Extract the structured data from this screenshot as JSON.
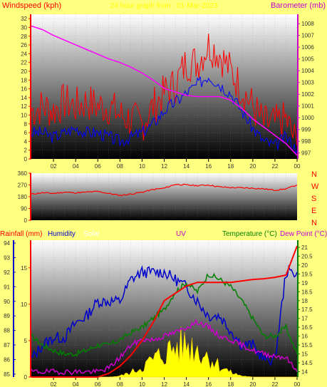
{
  "colors": {
    "background": "#ffff80",
    "wind": "#ff0000",
    "gust": "#ff0000",
    "wind_avg": "#0000ff",
    "baro": "#ff00ff",
    "direction": "#ff0000",
    "rain": "#ff0000",
    "humidity": "#0000cc",
    "solar": "#ffff00",
    "uv": "#cc00cc",
    "temperature": "#008000",
    "dewpoint": "#cc00cc",
    "axis_left_top": "#ff0000",
    "axis_right_top": "#cc00cc",
    "axis_bottom_left": "#0000ff"
  },
  "header": {
    "left_title": "Windspeed (kph)",
    "center_title": "24 hour graph from : 01-Mar-2023",
    "right_title": "Barometer (mb)"
  },
  "bottom_header": {
    "rainfall": "Rainfall (mm)",
    "humidity": "Humidity",
    "solar": "Solar",
    "uv": "UV",
    "temperature": "Temperature (°C)",
    "dewpoint": "Dew Point (°C)"
  },
  "compass": [
    "N",
    "W",
    "S",
    "E",
    "N"
  ],
  "x_ticks": [
    "02",
    "04",
    "06",
    "08",
    "10",
    "12",
    "14",
    "16",
    "18",
    "20",
    "22",
    "00"
  ],
  "chart_data": [
    {
      "type": "line",
      "name": "wind-chart",
      "x_hours": [
        0,
        1,
        2,
        3,
        4,
        5,
        6,
        7,
        8,
        9,
        10,
        11,
        12,
        13,
        14,
        15,
        16,
        17,
        18,
        19,
        20,
        21,
        22,
        23,
        24
      ],
      "series": [
        {
          "key": "gust",
          "values": [
            11,
            12,
            11,
            13,
            12,
            13,
            12,
            12,
            10,
            9,
            8,
            12,
            15,
            17,
            22,
            22,
            26,
            24,
            20,
            16,
            12,
            8,
            8,
            9,
            3
          ]
        },
        {
          "key": "wind_avg",
          "values": [
            6,
            6,
            5,
            6,
            7,
            6,
            6,
            5,
            4,
            5,
            6,
            8,
            11,
            13,
            15,
            17,
            19,
            17,
            15,
            11,
            7,
            4,
            3,
            5,
            2
          ]
        },
        {
          "key": "baro",
          "values": [
            1007.8,
            1007.5,
            1007.0,
            1006.6,
            1006.2,
            1005.8,
            1005.4,
            1005.0,
            1004.7,
            1004.3,
            1003.8,
            1003.2,
            1002.5,
            1002.2,
            1001.9,
            1001.8,
            1001.8,
            1001.8,
            1001.5,
            1000.8,
            999.9,
            999.2,
            998.5,
            997.8,
            996.8
          ]
        }
      ],
      "y_left": {
        "label": "Windspeed (kph)",
        "min": 0,
        "max": 33,
        "ticks": [
          0,
          2,
          4,
          6,
          8,
          10,
          12,
          14,
          16,
          18,
          20,
          22,
          24,
          26,
          28,
          30,
          32
        ]
      },
      "y_right": {
        "label": "Barometer (mb)",
        "min": 996.5,
        "max": 1008.8,
        "ticks": [
          997,
          998,
          999,
          1000,
          1001,
          1002,
          1003,
          1004,
          1005,
          1006,
          1007,
          1008
        ]
      }
    },
    {
      "type": "line",
      "name": "direction-chart",
      "x_hours": [
        0,
        1,
        2,
        3,
        4,
        5,
        6,
        7,
        8,
        9,
        10,
        11,
        12,
        13,
        14,
        15,
        16,
        17,
        18,
        19,
        20,
        21,
        22,
        23,
        24
      ],
      "series": [
        {
          "key": "direction",
          "values": [
            200,
            210,
            205,
            215,
            210,
            215,
            220,
            205,
            190,
            200,
            215,
            235,
            245,
            275,
            270,
            265,
            270,
            255,
            250,
            248,
            245,
            240,
            230,
            240,
            270
          ]
        }
      ],
      "y_left": {
        "min": 0,
        "max": 360,
        "ticks": [
          0,
          90,
          180,
          270,
          360
        ],
        "tick_labels": [
          "0",
          "90",
          "180",
          "270",
          "360"
        ],
        "extra_ticks": [
          30,
          60,
          120,
          150,
          210,
          240,
          300,
          330
        ]
      }
    },
    {
      "type": "line",
      "name": "rain-humidity-temp-chart",
      "x_hours": [
        0,
        1,
        2,
        3,
        4,
        5,
        6,
        7,
        8,
        9,
        10,
        11,
        12,
        13,
        14,
        15,
        16,
        17,
        18,
        19,
        20,
        21,
        22,
        23,
        24
      ],
      "series": [
        {
          "key": "humidity",
          "values": [
            86,
            87,
            87.5,
            87.5,
            88.5,
            89,
            90,
            90,
            90,
            91.5,
            92,
            92,
            92,
            91.5,
            91,
            90,
            89,
            89,
            88,
            87,
            87,
            86,
            86,
            92,
            92
          ]
        },
        {
          "key": "rain",
          "values": [
            0,
            0,
            0,
            0,
            0,
            0,
            0,
            0.5,
            1.5,
            3,
            5,
            7.5,
            10.5,
            11.5,
            12.5,
            13,
            13,
            13,
            13,
            13.2,
            13.4,
            13.5,
            13.7,
            14,
            18
          ]
        },
        {
          "key": "temperature",
          "values": [
            16,
            15.5,
            15.2,
            15,
            15,
            15.2,
            15.5,
            15.5,
            15.8,
            16.2,
            16.5,
            17,
            17.5,
            18.5,
            19,
            18.5,
            19.5,
            19.2,
            18.8,
            18,
            17,
            16,
            16,
            16.5,
            15
          ]
        },
        {
          "key": "dewpoint",
          "values": [
            14,
            14,
            14,
            14,
            14,
            14,
            14,
            14.2,
            14.8,
            15.5,
            15.8,
            15.8,
            16,
            16.2,
            16.5,
            16.8,
            16.5,
            16,
            15.8,
            15.5,
            15.2,
            15,
            14.9,
            14.8,
            14
          ]
        },
        {
          "key": "uv",
          "values": [
            0,
            0,
            0,
            0,
            0,
            0,
            0,
            0,
            0,
            0.2,
            0.6,
            1.2,
            1.8,
            2.2,
            2.4,
            2.2,
            1.6,
            1.0,
            0.5,
            0.1,
            0,
            0,
            0,
            0,
            0
          ]
        },
        {
          "key": "solar",
          "values": [
            0,
            0,
            0,
            0,
            0,
            0,
            0,
            0,
            2,
            8,
            18,
            30,
            42,
            52,
            58,
            50,
            36,
            20,
            8,
            2,
            0,
            0,
            0,
            0,
            0
          ]
        }
      ],
      "y_humidity": {
        "min": 84.8,
        "max": 94.2,
        "ticks": [
          85,
          86,
          87,
          88,
          89,
          90,
          91,
          92,
          93,
          94
        ]
      },
      "y_rain": {
        "min": 0,
        "max": 18.8,
        "ticks": [
          0,
          5,
          10,
          15
        ]
      },
      "y_temp": {
        "min": 13.7,
        "max": 21.4,
        "ticks": [
          14,
          14.5,
          15,
          15.5,
          16,
          16.5,
          17,
          17.5,
          18,
          18.5,
          19,
          19.5,
          20,
          20.5,
          21
        ]
      }
    }
  ]
}
